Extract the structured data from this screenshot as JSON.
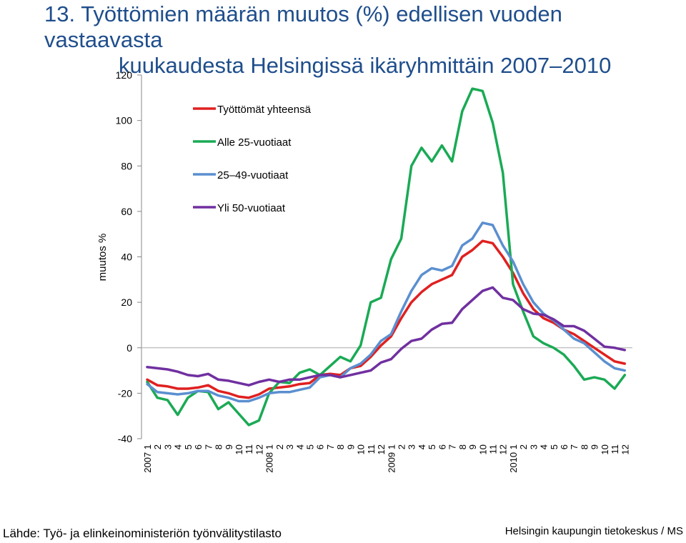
{
  "title": {
    "line1": "13. Työttömien määrän muutos (%) edellisen vuoden vastaavasta",
    "line2": "kuukaudesta Helsingissä ikäryhmittäin 2007–2010"
  },
  "footer": {
    "source": "Lähde: Työ- ja elinkeinoministeriön työnvälitystilasto",
    "credit": "Helsingin kaupungin tietokeskus / MS"
  },
  "chart_data": {
    "type": "line",
    "ylabel": "muutos %",
    "ylim": [
      -40,
      120
    ],
    "yticks": [
      -40,
      -20,
      0,
      20,
      40,
      60,
      80,
      100,
      120
    ],
    "grid": false,
    "legend_position": "top-left",
    "categories": [
      "2007 1",
      "2",
      "3",
      "4",
      "5",
      "6",
      "7",
      "8",
      "9",
      "10",
      "11",
      "12",
      "2008 1",
      "2",
      "3",
      "4",
      "5",
      "6",
      "7",
      "8",
      "9",
      "10",
      "11",
      "12",
      "2009 1",
      "2",
      "3",
      "4",
      "5",
      "6",
      "7",
      "8",
      "9",
      "10",
      "11",
      "12",
      "2010 1",
      "2",
      "3",
      "4",
      "5",
      "6",
      "7",
      "8",
      "9",
      "10",
      "11",
      "12"
    ],
    "series": [
      {
        "name": "Työttömät yhteensä",
        "color": "#e02020",
        "values": [
          -14,
          -16.5,
          -17,
          -18,
          -18,
          -17.5,
          -16.5,
          -19,
          -20,
          -21.5,
          -22,
          -20.5,
          -18,
          -17.5,
          -17,
          -16,
          -15.5,
          -12,
          -11.5,
          -12,
          -9,
          -8,
          -4,
          1,
          5,
          13,
          20,
          24.5,
          28,
          30,
          32,
          40,
          43,
          47,
          46,
          40,
          33,
          24,
          17,
          13,
          11,
          8,
          6,
          3,
          0,
          -3,
          -6,
          -7
        ]
      },
      {
        "name": "Alle 25-vuotiaat",
        "color": "#1aaa55",
        "values": [
          -15,
          -22,
          -23,
          -29.5,
          -22,
          -19,
          -19.5,
          -27,
          -24,
          -29,
          -34,
          -32,
          -20,
          -15,
          -15.5,
          -11,
          -9.5,
          -12,
          -8,
          -4,
          -6,
          1,
          20,
          22,
          39,
          48,
          80,
          88,
          82,
          89,
          82,
          104,
          114,
          113,
          99,
          77,
          28,
          16,
          5,
          2,
          0,
          -3,
          -8,
          -14,
          -13,
          -14,
          -18,
          -12
        ]
      },
      {
        "name": "25–49-vuotiaat",
        "color": "#5b8fd0",
        "values": [
          -16,
          -19.5,
          -20,
          -20.5,
          -20,
          -19,
          -19,
          -21,
          -22,
          -23.5,
          -23.5,
          -22,
          -20,
          -19.5,
          -19.5,
          -18.5,
          -17.5,
          -13,
          -12,
          -13,
          -9,
          -7,
          -3,
          3,
          6,
          16,
          25,
          32,
          35,
          34,
          36,
          45,
          48,
          55,
          54,
          45,
          38,
          28,
          20,
          15,
          12,
          8,
          4,
          2,
          -2,
          -6,
          -9,
          -10
        ]
      },
      {
        "name": "Yli 50-vuotiaat",
        "color": "#7030a0",
        "values": [
          -8.5,
          -9,
          -9.5,
          -10.5,
          -12,
          -12.5,
          -11.5,
          -14,
          -14.5,
          -15.5,
          -16.5,
          -15,
          -14,
          -15,
          -14,
          -14,
          -13,
          -12,
          -12,
          -13,
          -12,
          -11,
          -10,
          -6.5,
          -5,
          -0.5,
          3,
          4,
          8,
          10.5,
          11,
          17,
          21,
          25,
          26.5,
          22,
          21,
          17,
          15,
          14.5,
          12.5,
          9.5,
          9.5,
          7.5,
          4,
          0.5,
          0,
          -1
        ]
      }
    ]
  }
}
